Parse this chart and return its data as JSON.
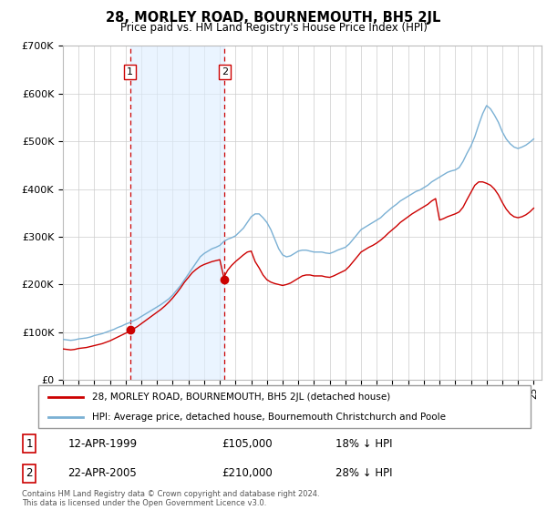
{
  "title": "28, MORLEY ROAD, BOURNEMOUTH, BH5 2JL",
  "subtitle": "Price paid vs. HM Land Registry's House Price Index (HPI)",
  "legend_label_red": "28, MORLEY ROAD, BOURNEMOUTH, BH5 2JL (detached house)",
  "legend_label_blue": "HPI: Average price, detached house, Bournemouth Christchurch and Poole",
  "footnote": "Contains HM Land Registry data © Crown copyright and database right 2024.\nThis data is licensed under the Open Government Licence v3.0.",
  "sale1_date": "12-APR-1999",
  "sale1_price": "£105,000",
  "sale1_hpi": "18% ↓ HPI",
  "sale2_date": "22-APR-2005",
  "sale2_price": "£210,000",
  "sale2_hpi": "28% ↓ HPI",
  "sale1_x": 1999.28,
  "sale1_y": 105000,
  "sale2_x": 2005.31,
  "sale2_y": 210000,
  "ylim": [
    0,
    700000
  ],
  "xlim_start": 1995.0,
  "xlim_end": 2025.5,
  "red_color": "#cc0000",
  "blue_color": "#7ab0d4",
  "blue_fill": "#ddeeff",
  "dashed_color": "#cc0000",
  "background_color": "#ffffff",
  "grid_color": "#cccccc",
  "hpi_x": [
    1995.0,
    1995.25,
    1995.5,
    1995.75,
    1996.0,
    1996.25,
    1996.5,
    1996.75,
    1997.0,
    1997.25,
    1997.5,
    1997.75,
    1998.0,
    1998.25,
    1998.5,
    1998.75,
    1999.0,
    1999.25,
    1999.5,
    1999.75,
    2000.0,
    2000.25,
    2000.5,
    2000.75,
    2001.0,
    2001.25,
    2001.5,
    2001.75,
    2002.0,
    2002.25,
    2002.5,
    2002.75,
    2003.0,
    2003.25,
    2003.5,
    2003.75,
    2004.0,
    2004.25,
    2004.5,
    2004.75,
    2005.0,
    2005.25,
    2005.5,
    2005.75,
    2006.0,
    2006.25,
    2006.5,
    2006.75,
    2007.0,
    2007.25,
    2007.5,
    2007.75,
    2008.0,
    2008.25,
    2008.5,
    2008.75,
    2009.0,
    2009.25,
    2009.5,
    2009.75,
    2010.0,
    2010.25,
    2010.5,
    2010.75,
    2011.0,
    2011.25,
    2011.5,
    2011.75,
    2012.0,
    2012.25,
    2012.5,
    2012.75,
    2013.0,
    2013.25,
    2013.5,
    2013.75,
    2014.0,
    2014.25,
    2014.5,
    2014.75,
    2015.0,
    2015.25,
    2015.5,
    2015.75,
    2016.0,
    2016.25,
    2016.5,
    2016.75,
    2017.0,
    2017.25,
    2017.5,
    2017.75,
    2018.0,
    2018.25,
    2018.5,
    2018.75,
    2019.0,
    2019.25,
    2019.5,
    2019.75,
    2020.0,
    2020.25,
    2020.5,
    2020.75,
    2021.0,
    2021.25,
    2021.5,
    2021.75,
    2022.0,
    2022.25,
    2022.5,
    2022.75,
    2023.0,
    2023.25,
    2023.5,
    2023.75,
    2024.0,
    2024.25,
    2024.5,
    2024.75,
    2025.0
  ],
  "hpi_y": [
    85000,
    84000,
    83000,
    84000,
    86000,
    87000,
    88000,
    90000,
    93000,
    95000,
    97000,
    100000,
    103000,
    106000,
    110000,
    113000,
    117000,
    120000,
    124000,
    128000,
    133000,
    138000,
    143000,
    148000,
    153000,
    158000,
    164000,
    170000,
    178000,
    188000,
    198000,
    210000,
    222000,
    234000,
    246000,
    258000,
    265000,
    270000,
    275000,
    278000,
    282000,
    290000,
    295000,
    298000,
    302000,
    310000,
    318000,
    330000,
    342000,
    348000,
    348000,
    340000,
    330000,
    315000,
    295000,
    275000,
    262000,
    258000,
    260000,
    265000,
    270000,
    272000,
    272000,
    270000,
    268000,
    268000,
    268000,
    266000,
    265000,
    268000,
    272000,
    275000,
    278000,
    285000,
    295000,
    305000,
    315000,
    320000,
    325000,
    330000,
    335000,
    340000,
    348000,
    355000,
    362000,
    368000,
    375000,
    380000,
    385000,
    390000,
    395000,
    398000,
    403000,
    408000,
    415000,
    420000,
    425000,
    430000,
    435000,
    438000,
    440000,
    445000,
    458000,
    475000,
    490000,
    510000,
    535000,
    558000,
    575000,
    568000,
    555000,
    540000,
    520000,
    505000,
    495000,
    488000,
    485000,
    488000,
    492000,
    498000,
    505000
  ],
  "red_x": [
    1995.0,
    1995.25,
    1995.5,
    1995.75,
    1996.0,
    1996.25,
    1996.5,
    1996.75,
    1997.0,
    1997.25,
    1997.5,
    1997.75,
    1998.0,
    1998.25,
    1998.5,
    1998.75,
    1999.0,
    1999.25,
    1999.5,
    1999.75,
    2000.0,
    2000.25,
    2000.5,
    2000.75,
    2001.0,
    2001.25,
    2001.5,
    2001.75,
    2002.0,
    2002.25,
    2002.5,
    2002.75,
    2003.0,
    2003.25,
    2003.5,
    2003.75,
    2004.0,
    2004.25,
    2004.5,
    2004.75,
    2005.0,
    2005.25,
    2005.5,
    2005.75,
    2006.0,
    2006.25,
    2006.5,
    2006.75,
    2007.0,
    2007.25,
    2007.5,
    2007.75,
    2008.0,
    2008.25,
    2008.5,
    2008.75,
    2009.0,
    2009.25,
    2009.5,
    2009.75,
    2010.0,
    2010.25,
    2010.5,
    2010.75,
    2011.0,
    2011.25,
    2011.5,
    2011.75,
    2012.0,
    2012.25,
    2012.5,
    2012.75,
    2013.0,
    2013.25,
    2013.5,
    2013.75,
    2014.0,
    2014.25,
    2014.5,
    2014.75,
    2015.0,
    2015.25,
    2015.5,
    2015.75,
    2016.0,
    2016.25,
    2016.5,
    2016.75,
    2017.0,
    2017.25,
    2017.5,
    2017.75,
    2018.0,
    2018.25,
    2018.5,
    2018.75,
    2019.0,
    2019.25,
    2019.5,
    2019.75,
    2020.0,
    2020.25,
    2020.5,
    2020.75,
    2021.0,
    2021.25,
    2021.5,
    2021.75,
    2022.0,
    2022.25,
    2022.5,
    2022.75,
    2023.0,
    2023.25,
    2023.5,
    2023.75,
    2024.0,
    2024.25,
    2024.5,
    2024.75,
    2025.0
  ],
  "red_y": [
    65000,
    64000,
    63000,
    64000,
    66000,
    67000,
    68000,
    70000,
    72000,
    74000,
    76000,
    79000,
    82000,
    86000,
    90000,
    94000,
    98000,
    102000,
    107000,
    112000,
    118000,
    124000,
    130000,
    136000,
    142000,
    148000,
    155000,
    163000,
    172000,
    182000,
    193000,
    205000,
    215000,
    225000,
    232000,
    238000,
    242000,
    245000,
    248000,
    250000,
    252000,
    215000,
    230000,
    240000,
    248000,
    255000,
    262000,
    268000,
    270000,
    248000,
    235000,
    220000,
    210000,
    205000,
    202000,
    200000,
    198000,
    200000,
    203000,
    208000,
    213000,
    218000,
    220000,
    220000,
    218000,
    218000,
    218000,
    216000,
    215000,
    218000,
    222000,
    226000,
    230000,
    238000,
    248000,
    258000,
    268000,
    273000,
    278000,
    282000,
    287000,
    293000,
    300000,
    308000,
    315000,
    322000,
    330000,
    336000,
    342000,
    348000,
    353000,
    358000,
    363000,
    368000,
    375000,
    380000,
    335000,
    338000,
    342000,
    345000,
    348000,
    352000,
    362000,
    378000,
    393000,
    408000,
    415000,
    415000,
    412000,
    408000,
    400000,
    388000,
    372000,
    358000,
    348000,
    342000,
    340000,
    342000,
    346000,
    352000,
    360000
  ]
}
